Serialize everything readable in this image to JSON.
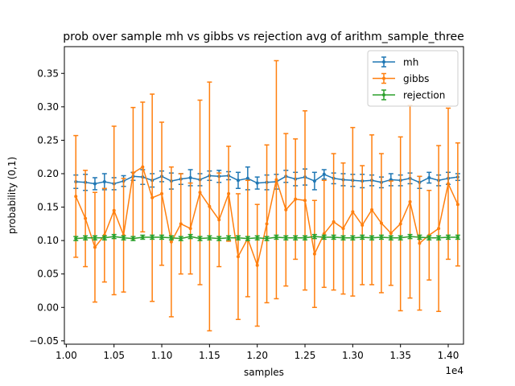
{
  "chart_data": {
    "type": "line",
    "title": "prob over sample mh vs gibbs vs rejection avg of arithm_sample_three",
    "xlabel": "samples",
    "ylabel": "probability (0,1)",
    "x_offset_label": "1e4",
    "xlim": [
      0.998,
      1.416
    ],
    "ylim": [
      -0.055,
      0.39
    ],
    "x_ticks": [
      1.0,
      1.05,
      1.1,
      1.15,
      1.2,
      1.25,
      1.3,
      1.35,
      1.4
    ],
    "x_tick_labels": [
      "1.00",
      "1.05",
      "1.10",
      "1.15",
      "1.20",
      "1.25",
      "1.30",
      "1.35",
      "1.40"
    ],
    "y_ticks": [
      -0.05,
      0.0,
      0.05,
      0.1,
      0.15,
      0.2,
      0.25,
      0.3,
      0.35
    ],
    "y_tick_labels": [
      "−0.05",
      "0.00",
      "0.05",
      "0.10",
      "0.15",
      "0.20",
      "0.25",
      "0.30",
      "0.35"
    ],
    "legend_position": "top-right",
    "error_bars": true,
    "x": [
      1.01,
      1.02,
      1.03,
      1.04,
      1.05,
      1.06,
      1.07,
      1.08,
      1.09,
      1.1,
      1.11,
      1.12,
      1.13,
      1.14,
      1.15,
      1.16,
      1.17,
      1.18,
      1.19,
      1.2,
      1.21,
      1.22,
      1.23,
      1.24,
      1.25,
      1.26,
      1.27,
      1.28,
      1.29,
      1.3,
      1.31,
      1.32,
      1.33,
      1.34,
      1.35,
      1.36,
      1.37,
      1.38,
      1.39,
      1.4,
      1.41
    ],
    "series": [
      {
        "name": "mh",
        "color": "#1f77b4",
        "values": [
          0.188,
          0.187,
          0.185,
          0.188,
          0.185,
          0.189,
          0.196,
          0.195,
          0.19,
          0.196,
          0.189,
          0.192,
          0.194,
          0.191,
          0.197,
          0.196,
          0.197,
          0.19,
          0.193,
          0.186,
          0.187,
          0.188,
          0.196,
          0.192,
          0.195,
          0.189,
          0.199,
          0.193,
          0.191,
          0.19,
          0.189,
          0.19,
          0.187,
          0.191,
          0.19,
          0.193,
          0.187,
          0.194,
          0.19,
          0.193,
          0.195
        ],
        "errors": [
          0.01,
          0.012,
          0.009,
          0.012,
          0.009,
          0.008,
          0.006,
          0.011,
          0.01,
          0.008,
          0.012,
          0.008,
          0.012,
          0.009,
          0.007,
          0.009,
          0.006,
          0.012,
          0.017,
          0.009,
          0.011,
          0.011,
          0.009,
          0.01,
          0.012,
          0.013,
          0.007,
          0.008,
          0.009,
          0.009,
          0.01,
          0.008,
          0.008,
          0.009,
          0.008,
          0.008,
          0.009,
          0.008,
          0.008,
          0.009,
          0.005
        ]
      },
      {
        "name": "gibbs",
        "color": "#ff7f0e",
        "values": [
          0.166,
          0.133,
          0.09,
          0.108,
          0.145,
          0.108,
          0.201,
          0.21,
          0.164,
          0.17,
          0.098,
          0.125,
          0.118,
          0.172,
          0.151,
          0.131,
          0.17,
          0.076,
          0.103,
          0.063,
          0.125,
          0.191,
          0.146,
          0.162,
          0.16,
          0.08,
          0.11,
          0.128,
          0.118,
          0.143,
          0.123,
          0.146,
          0.126,
          0.111,
          0.125,
          0.158,
          0.096,
          0.108,
          0.118,
          0.185,
          0.154
        ],
        "errors": [
          0.091,
          0.072,
          0.082,
          0.07,
          0.126,
          0.085,
          0.098,
          0.097,
          0.155,
          0.107,
          0.112,
          0.075,
          0.068,
          0.138,
          0.186,
          0.07,
          0.071,
          0.094,
          0.087,
          0.091,
          0.118,
          0.178,
          0.114,
          0.09,
          0.134,
          0.08,
          0.08,
          0.102,
          0.098,
          0.126,
          0.089,
          0.112,
          0.104,
          0.078,
          0.13,
          0.144,
          0.1,
          0.067,
          0.124,
          0.113,
          0.092
        ]
      },
      {
        "name": "rejection",
        "color": "#2ca02c",
        "values": [
          0.103,
          0.104,
          0.104,
          0.104,
          0.106,
          0.104,
          0.103,
          0.105,
          0.105,
          0.105,
          0.104,
          0.103,
          0.106,
          0.103,
          0.104,
          0.103,
          0.104,
          0.104,
          0.103,
          0.104,
          0.103,
          0.105,
          0.104,
          0.104,
          0.104,
          0.106,
          0.105,
          0.105,
          0.104,
          0.104,
          0.105,
          0.104,
          0.105,
          0.104,
          0.104,
          0.106,
          0.105,
          0.104,
          0.104,
          0.105,
          0.105
        ]
      }
    ]
  }
}
